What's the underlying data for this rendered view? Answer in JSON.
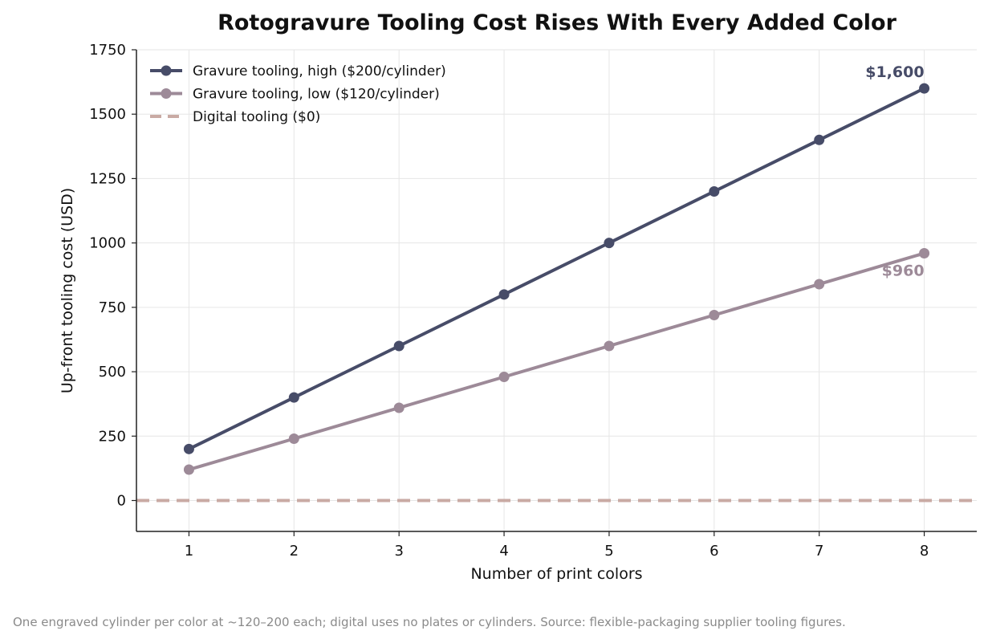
{
  "chart_data": {
    "type": "line",
    "title": "Rotogravure Tooling Cost Rises With Every Added Color",
    "xlabel": "Number of print colors",
    "ylabel": "Up-front tooling cost (USD)",
    "x": [
      1,
      2,
      3,
      4,
      5,
      6,
      7,
      8
    ],
    "xlim": [
      0.5,
      8.5
    ],
    "ylim": [
      -120,
      1750
    ],
    "yticks": [
      0,
      250,
      500,
      750,
      1000,
      1250,
      1500,
      1750
    ],
    "grid": true,
    "legend_position": "top-left",
    "series": [
      {
        "name": "Gravure tooling, high ($200/cylinder)",
        "values": [
          200,
          400,
          600,
          800,
          1000,
          1200,
          1400,
          1600
        ],
        "color": "#474c68",
        "style": "solid-markers",
        "end_label": "$1,600"
      },
      {
        "name": "Gravure tooling, low ($120/cylinder)",
        "values": [
          120,
          240,
          360,
          480,
          600,
          720,
          840,
          960
        ],
        "color": "#9d8a98",
        "style": "solid-markers",
        "end_label": "$960"
      },
      {
        "name": "Digital tooling ($0)",
        "constant": 0,
        "color": "#c9aaa4",
        "style": "dashed"
      }
    ],
    "caption": "One engraved cylinder per color at ~120–200 each; digital uses no plates or cylinders. Source: flexible-packaging supplier tooling figures."
  }
}
